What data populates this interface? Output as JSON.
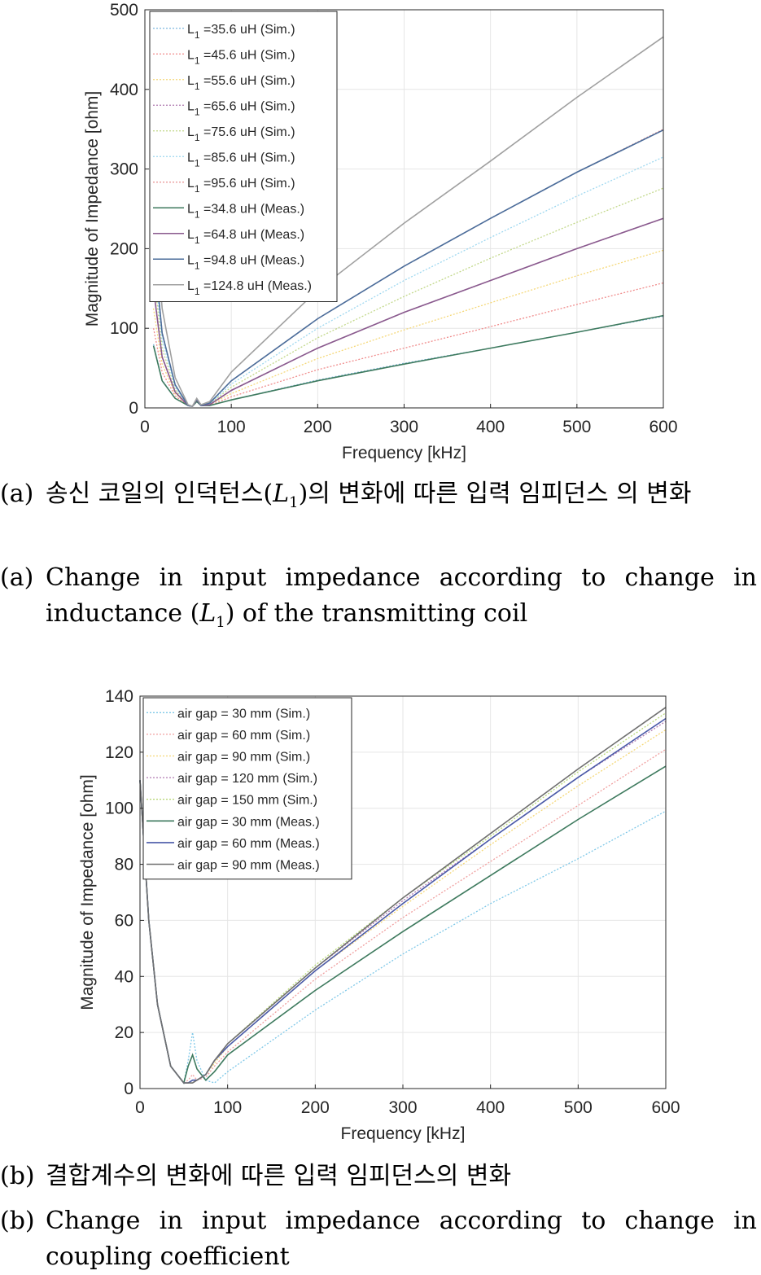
{
  "charts": {
    "chart_data": [
      {
        "type": "line",
        "title": "",
        "xlabel": "Frequency [kHz]",
        "ylabel": "Magnitude of Impedance [ohm]",
        "xlim": [
          0,
          600
        ],
        "ylim": [
          0,
          500
        ],
        "xticks": [
          0,
          100,
          200,
          300,
          400,
          500,
          600
        ],
        "yticks": [
          0,
          100,
          200,
          300,
          400,
          500
        ],
        "grid": true,
        "legend_position": "top-left",
        "series": [
          {
            "name": "=35.6 uH (Sim.)",
            "sub": "1",
            "pre": "L",
            "color": "#7fb8df",
            "dashed": true,
            "x": [
              10,
              20,
              35,
              50,
              55,
              60,
              65,
              75,
              100,
              200,
              300,
              400,
              500,
              600
            ],
            "y": [
              80,
              35,
              12,
              3,
              2,
              8,
              3,
              3,
              10,
              35,
              56,
              75,
              95,
              115
            ]
          },
          {
            "name": "=45.6 uH (Sim.)",
            "sub": "1",
            "pre": "L",
            "color": "#f08c8c",
            "dashed": true,
            "x": [
              10,
              20,
              35,
              50,
              55,
              60,
              65,
              75,
              100,
              200,
              300,
              400,
              500,
              600
            ],
            "y": [
              100,
              45,
              15,
              3,
              2,
              9,
              3,
              3,
              14,
              48,
              75,
              102,
              130,
              157
            ]
          },
          {
            "name": "=55.6 uH (Sim.)",
            "sub": "1",
            "pre": "L",
            "color": "#f5d878",
            "dashed": true,
            "x": [
              10,
              20,
              35,
              50,
              55,
              60,
              65,
              75,
              100,
              200,
              300,
              400,
              500,
              600
            ],
            "y": [
              125,
              55,
              18,
              3,
              2,
              10,
              3,
              4,
              18,
              62,
              98,
              132,
              166,
              198
            ]
          },
          {
            "name": "=65.6 uH (Sim.)",
            "sub": "1",
            "pre": "L",
            "color": "#b07ab0",
            "dashed": true,
            "x": [
              10,
              20,
              35,
              50,
              55,
              60,
              65,
              75,
              100,
              200,
              300,
              400,
              500,
              600
            ],
            "y": [
              150,
              65,
              20,
              3,
              2,
              10,
              3,
              4,
              22,
              75,
              120,
              160,
              200,
              238
            ]
          },
          {
            "name": "=75.6 uH (Sim.)",
            "sub": "1",
            "pre": "L",
            "color": "#c2d88a",
            "dashed": true,
            "x": [
              10,
              20,
              35,
              50,
              55,
              60,
              65,
              75,
              100,
              200,
              300,
              400,
              500,
              600
            ],
            "y": [
              170,
              75,
              23,
              3,
              2,
              11,
              3,
              5,
              26,
              88,
              140,
              188,
              233,
              276
            ]
          },
          {
            "name": "=85.6 uH (Sim.)",
            "sub": "1",
            "pre": "L",
            "color": "#9fd8f0",
            "dashed": true,
            "x": [
              10,
              20,
              35,
              50,
              55,
              60,
              65,
              75,
              100,
              200,
              300,
              400,
              500,
              600
            ],
            "y": [
              190,
              85,
              26,
              3,
              2,
              11,
              3,
              5,
              30,
              100,
              160,
              214,
              266,
              315
            ]
          },
          {
            "name": "=95.6 uH (Sim.)",
            "sub": "1",
            "pre": "L",
            "color": "#e89090",
            "dashed": true,
            "x": [
              10,
              20,
              35,
              50,
              55,
              60,
              65,
              75,
              100,
              200,
              300,
              400,
              500,
              600
            ],
            "y": [
              210,
              95,
              29,
              3,
              2,
              11,
              3,
              6,
              34,
              112,
              178,
              238,
              296,
              350
            ]
          },
          {
            "name": "=34.8 uH (Meas.)",
            "sub": "1",
            "pre": "L",
            "color": "#3e7a5e",
            "dashed": false,
            "x": [
              10,
              20,
              35,
              50,
              55,
              60,
              65,
              75,
              100,
              200,
              300,
              400,
              500,
              600
            ],
            "y": [
              78,
              34,
              12,
              3,
              2,
              8,
              3,
              3,
              10,
              34,
              55,
              75,
              95,
              116
            ]
          },
          {
            "name": "=64.8 uH (Meas.)",
            "sub": "1",
            "pre": "L",
            "color": "#8a5a8e",
            "dashed": false,
            "x": [
              10,
              20,
              35,
              50,
              55,
              60,
              65,
              75,
              100,
              200,
              300,
              400,
              500,
              600
            ],
            "y": [
              150,
              64,
              20,
              3,
              2,
              10,
              3,
              4,
              22,
              75,
              120,
              160,
              200,
              238
            ]
          },
          {
            "name": "=94.8 uH (Meas.)",
            "sub": "1",
            "pre": "L",
            "color": "#4a6c9a",
            "dashed": false,
            "x": [
              10,
              20,
              35,
              50,
              55,
              60,
              65,
              75,
              100,
              200,
              300,
              400,
              500,
              600
            ],
            "y": [
              208,
              94,
              29,
              3,
              2,
              11,
              3,
              6,
              34,
              112,
              178,
              238,
              296,
              349
            ]
          },
          {
            "name": "=124.8 uH (Meas.)",
            "sub": "1",
            "pre": "L",
            "color": "#a0a0a0",
            "dashed": false,
            "x": [
              10,
              20,
              35,
              50,
              55,
              60,
              65,
              75,
              100,
              200,
              300,
              400,
              500,
              600
            ],
            "y": [
              270,
              125,
              38,
              4,
              2,
              12,
              4,
              8,
              45,
              148,
              232,
              310,
              390,
              466
            ]
          }
        ]
      },
      {
        "type": "line",
        "title": "",
        "xlabel": "Frequency [kHz]",
        "ylabel": "Magnitude of Impedance [ohm]",
        "xlim": [
          0,
          600
        ],
        "ylim": [
          0,
          140
        ],
        "xticks": [
          0,
          100,
          200,
          300,
          400,
          500,
          600
        ],
        "yticks": [
          0,
          20,
          40,
          60,
          80,
          100,
          120,
          140
        ],
        "grid": true,
        "legend_position": "top-left",
        "series": [
          {
            "name": "air gap = 30 mm (Sim.)",
            "color": "#7fc8e8",
            "dashed": true,
            "x": [
              0,
              10,
              20,
              35,
              50,
              55,
              60,
              65,
              75,
              85,
              100,
              200,
              300,
              400,
              500,
              600
            ],
            "y": [
              110,
              60,
              30,
              8,
              2,
              10,
              20,
              10,
              3,
              2,
              6,
              28,
              48,
              66,
              82,
              99
            ]
          },
          {
            "name": "air gap = 60 mm (Sim.)",
            "color": "#f0a0a0",
            "dashed": true,
            "x": [
              0,
              10,
              20,
              35,
              50,
              55,
              60,
              65,
              75,
              85,
              100,
              200,
              300,
              400,
              500,
              600
            ],
            "y": [
              110,
              60,
              30,
              8,
              2,
              3,
              5,
              3,
              4,
              8,
              13,
              39,
              61,
              81,
              101,
              121
            ]
          },
          {
            "name": "air gap = 90 mm (Sim.)",
            "color": "#f5d878",
            "dashed": true,
            "x": [
              0,
              10,
              20,
              35,
              50,
              55,
              60,
              65,
              75,
              85,
              100,
              200,
              300,
              400,
              500,
              600
            ],
            "y": [
              110,
              60,
              30,
              8,
              2,
              2,
              3,
              3,
              5,
              9,
              15,
              42,
              65,
              87,
              108,
              128
            ]
          },
          {
            "name": "air gap = 120 mm (Sim.)",
            "color": "#b07ab0",
            "dashed": true,
            "x": [
              0,
              10,
              20,
              35,
              50,
              55,
              60,
              65,
              75,
              85,
              100,
              200,
              300,
              400,
              500,
              600
            ],
            "y": [
              110,
              60,
              30,
              8,
              2,
              2,
              2,
              3,
              5,
              10,
              16,
              43,
              67,
              89,
              111,
              131
            ]
          },
          {
            "name": "air gap = 150 mm (Sim.)",
            "color": "#b8d878",
            "dashed": true,
            "x": [
              0,
              10,
              20,
              35,
              50,
              55,
              60,
              65,
              75,
              85,
              100,
              200,
              300,
              400,
              500,
              600
            ],
            "y": [
              110,
              60,
              30,
              8,
              2,
              2,
              2,
              3,
              5,
              10,
              16,
              44,
              68,
              90,
              113,
              134
            ]
          },
          {
            "name": "air gap = 30 mm (Meas.)",
            "color": "#3e7a5e",
            "dashed": false,
            "x": [
              0,
              10,
              20,
              35,
              50,
              55,
              60,
              65,
              75,
              85,
              100,
              200,
              300,
              400,
              500,
              600
            ],
            "y": [
              110,
              60,
              30,
              8,
              2,
              8,
              12,
              7,
              3,
              6,
              12,
              35,
              56,
              76,
              96,
              115
            ]
          },
          {
            "name": "air gap = 60 mm (Meas.)",
            "color": "#4a5aa8",
            "dashed": false,
            "x": [
              0,
              10,
              20,
              35,
              50,
              55,
              60,
              65,
              75,
              85,
              100,
              200,
              300,
              400,
              500,
              600
            ],
            "y": [
              110,
              60,
              30,
              8,
              2,
              2,
              3,
              3,
              5,
              10,
              15,
              42,
              66,
              89,
              111,
              132
            ]
          },
          {
            "name": "air gap = 90 mm (Meas.)",
            "color": "#707070",
            "dashed": false,
            "x": [
              0,
              10,
              20,
              35,
              50,
              55,
              60,
              65,
              75,
              85,
              100,
              200,
              300,
              400,
              500,
              600
            ],
            "y": [
              110,
              60,
              30,
              8,
              2,
              2,
              2,
              3,
              5,
              10,
              16,
              43,
              68,
              91,
              114,
              136
            ]
          }
        ]
      }
    ]
  },
  "captions": {
    "a_ko_label": "(a)",
    "a_ko_1": "송신 코일의 인덕턴스(",
    "a_ko_L": "L",
    "a_ko_sub": "1",
    "a_ko_2": ")의 변화에 따른 입력 임피던스 의 변화",
    "a_en_label": "(a)",
    "a_en_1": "Change in input impedance according to change in inductance (",
    "a_en_L": "L",
    "a_en_sub": "1",
    "a_en_2": ") of the transmitting coil",
    "b_ko_label": "(b)",
    "b_ko_text": "결합계수의 변화에 따른 입력 임피던스의 변화",
    "b_en_label": "(b)",
    "b_en_text": "Change in input impedance according to change in coupling coefficient"
  }
}
